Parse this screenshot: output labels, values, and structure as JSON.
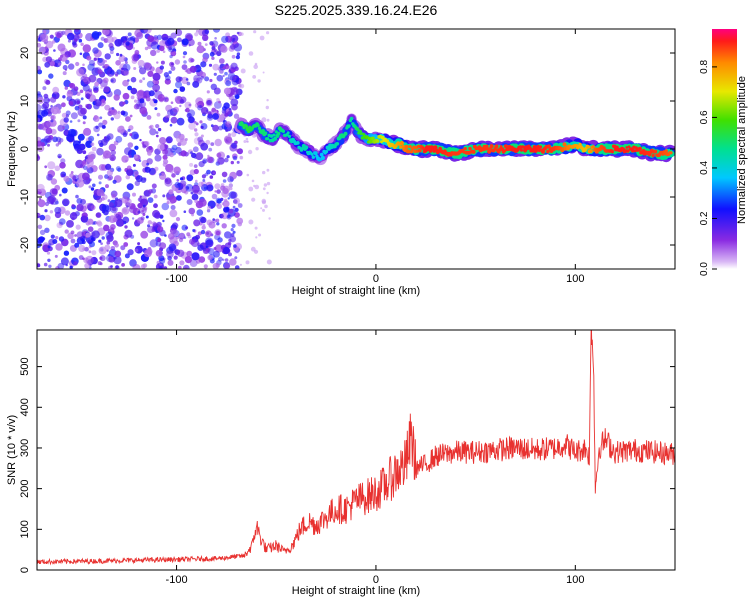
{
  "title": "S225.2025.339.16.24.E26",
  "chart_data": [
    {
      "type": "heatmap",
      "xlabel": "Height of straight line (km)",
      "ylabel": "Frequency (Hz)",
      "xlim": [
        -170,
        150
      ],
      "ylim": [
        -25,
        25
      ],
      "xticks": [
        -100,
        0,
        100
      ],
      "yticks": [
        -20,
        -10,
        0,
        10,
        20
      ],
      "colorbar": {
        "label": "Normalized spectral amplitude",
        "range": [
          0,
          0.95
        ],
        "ticks": [
          0,
          0.2,
          0.4,
          0.6,
          0.8
        ],
        "tick_labels": [
          "0.0",
          "0.2",
          "0.4",
          "0.6",
          "0.8"
        ]
      },
      "noise_region": {
        "x": [
          -170,
          -68
        ],
        "amplitude_range": [
          0.05,
          0.25
        ]
      },
      "ridge": {
        "x": [
          -68,
          -64,
          -60,
          -56,
          -52,
          -48,
          -44,
          -40,
          -36,
          -32,
          -28,
          -24,
          -20,
          -16,
          -12,
          -10,
          -8,
          -4,
          0,
          4,
          8,
          12,
          16,
          20,
          25,
          30,
          40,
          50,
          60,
          70,
          80,
          90,
          100,
          105,
          110,
          120,
          130,
          140,
          148
        ],
        "freq": [
          5,
          4,
          5,
          3,
          2,
          4,
          3,
          1,
          0,
          -1,
          -2,
          0,
          1,
          3,
          6,
          4,
          3,
          2,
          2,
          2,
          1,
          1,
          0,
          0,
          0,
          0,
          -1,
          0,
          0,
          0,
          0,
          0,
          1,
          0,
          0,
          0,
          0,
          -1,
          -1
        ],
        "amp": [
          0.5,
          0.55,
          0.5,
          0.5,
          0.45,
          0.5,
          0.45,
          0.4,
          0.45,
          0.4,
          0.35,
          0.4,
          0.45,
          0.5,
          0.45,
          0.5,
          0.55,
          0.6,
          0.65,
          0.7,
          0.75,
          0.8,
          0.85,
          0.85,
          0.9,
          0.9,
          0.88,
          0.88,
          0.88,
          0.9,
          0.9,
          0.88,
          0.8,
          0.75,
          0.85,
          0.9,
          0.9,
          0.88,
          0.85
        ]
      }
    },
    {
      "type": "line",
      "xlabel": "Height of straight line (km)",
      "ylabel": "SNR (10 * v/v)",
      "xlim": [
        -170,
        150
      ],
      "ylim": [
        0,
        590
      ],
      "xticks": [
        -100,
        0,
        100
      ],
      "yticks": [
        0,
        100,
        200,
        300,
        400,
        500
      ],
      "color": "#e8312f",
      "series": [
        {
          "name": "SNR",
          "x": [
            -170,
            -140,
            -110,
            -80,
            -66,
            -62,
            -60,
            -58,
            -55,
            -50,
            -46,
            -42,
            -38,
            -34,
            -30,
            -25,
            -20,
            -15,
            -10,
            -5,
            0,
            5,
            10,
            15,
            18,
            20,
            25,
            30,
            40,
            50,
            60,
            70,
            80,
            90,
            95,
            100,
            105,
            107,
            108,
            109,
            110,
            112,
            115,
            120,
            130,
            140,
            150
          ],
          "y": [
            20,
            22,
            25,
            28,
            35,
            60,
            110,
            80,
            50,
            60,
            45,
            60,
            100,
            120,
            110,
            130,
            150,
            150,
            170,
            180,
            190,
            210,
            240,
            260,
            330,
            250,
            260,
            280,
            290,
            290,
            295,
            300,
            295,
            300,
            310,
            290,
            300,
            280,
            600,
            550,
            200,
            300,
            320,
            290,
            295,
            290,
            285
          ]
        }
      ]
    }
  ]
}
